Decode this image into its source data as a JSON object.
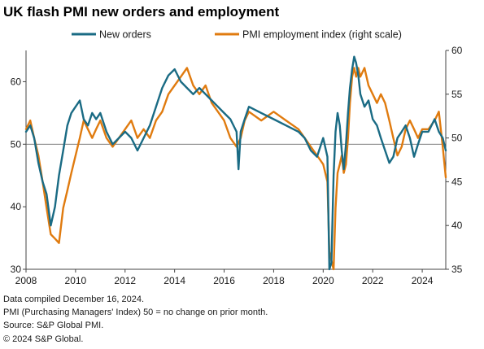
{
  "chart_data": {
    "type": "line",
    "title": "UK flash PMI new orders and employment",
    "x_ticks": [
      "2008",
      "2010",
      "2012",
      "2014",
      "2016",
      "2018",
      "2020",
      "2022",
      "2024"
    ],
    "xlim": [
      2008.0,
      2024.95
    ],
    "left_axis": {
      "ylim": [
        30,
        65
      ],
      "ticks": [
        "30",
        "40",
        "50",
        "60"
      ]
    },
    "right_axis": {
      "ylim": [
        35,
        60
      ],
      "ticks": [
        "35",
        "40",
        "45",
        "50",
        "55",
        "60"
      ]
    },
    "reference_line": 50,
    "legend_position": "top",
    "series": [
      {
        "name": "New orders",
        "axis": "left",
        "color": "#1a6b84",
        "x": [
          2008.0,
          2008.17,
          2008.33,
          2008.5,
          2008.67,
          2008.83,
          2009.0,
          2009.17,
          2009.33,
          2009.5,
          2009.67,
          2009.83,
          2010.0,
          2010.17,
          2010.33,
          2010.5,
          2010.67,
          2010.83,
          2011.0,
          2011.25,
          2011.5,
          2011.75,
          2012.0,
          2012.25,
          2012.5,
          2012.75,
          2013.0,
          2013.25,
          2013.5,
          2013.75,
          2014.0,
          2014.25,
          2014.5,
          2014.75,
          2015.0,
          2015.25,
          2015.5,
          2015.75,
          2016.0,
          2016.25,
          2016.5,
          2016.58,
          2016.67,
          2016.83,
          2017.0,
          2017.5,
          2018.0,
          2018.5,
          2019.0,
          2019.25,
          2019.5,
          2019.75,
          2020.0,
          2020.17,
          2020.25,
          2020.33,
          2020.42,
          2020.5,
          2020.58,
          2020.67,
          2020.75,
          2020.83,
          2020.92,
          2021.0,
          2021.08,
          2021.17,
          2021.25,
          2021.33,
          2021.42,
          2021.5,
          2021.67,
          2021.83,
          2022.0,
          2022.17,
          2022.33,
          2022.5,
          2022.67,
          2022.83,
          2023.0,
          2023.17,
          2023.33,
          2023.5,
          2023.67,
          2023.83,
          2024.0,
          2024.25,
          2024.5,
          2024.67,
          2024.83,
          2024.95
        ],
        "values": [
          52,
          53,
          51,
          47,
          44,
          42,
          37,
          40,
          45,
          49,
          53,
          55,
          56,
          57,
          54,
          53,
          55,
          54,
          55,
          52,
          50,
          51,
          52,
          51,
          49,
          51,
          53,
          56,
          59,
          61,
          62,
          60,
          59,
          58,
          59,
          58,
          57,
          56,
          55,
          54,
          52,
          46,
          52,
          54,
          56,
          55,
          54,
          53,
          52,
          51,
          49,
          48,
          51,
          48,
          30,
          31,
          45,
          52,
          55,
          53,
          49,
          46,
          50,
          55,
          59,
          62,
          64,
          63,
          61,
          58,
          56,
          57,
          54,
          53,
          51,
          49,
          47,
          48,
          51,
          52,
          53,
          51,
          48,
          50,
          52,
          52,
          54,
          52,
          51,
          49
        ]
      },
      {
        "name": "PMI employment index (right scale)",
        "axis": "right",
        "color": "#e07b0f",
        "x": [
          2008.0,
          2008.17,
          2008.33,
          2008.5,
          2008.67,
          2008.83,
          2009.0,
          2009.17,
          2009.33,
          2009.5,
          2009.67,
          2009.83,
          2010.0,
          2010.17,
          2010.33,
          2010.5,
          2010.67,
          2010.83,
          2011.0,
          2011.25,
          2011.5,
          2011.75,
          2012.0,
          2012.25,
          2012.5,
          2012.75,
          2013.0,
          2013.25,
          2013.5,
          2013.75,
          2014.0,
          2014.25,
          2014.5,
          2014.75,
          2015.0,
          2015.25,
          2015.5,
          2015.75,
          2016.0,
          2016.25,
          2016.5,
          2016.67,
          2016.83,
          2017.0,
          2017.5,
          2018.0,
          2018.5,
          2019.0,
          2019.25,
          2019.5,
          2019.75,
          2020.0,
          2020.17,
          2020.25,
          2020.33,
          2020.42,
          2020.5,
          2020.58,
          2020.67,
          2020.75,
          2020.83,
          2020.92,
          2021.0,
          2021.08,
          2021.17,
          2021.25,
          2021.33,
          2021.42,
          2021.5,
          2021.67,
          2021.83,
          2022.0,
          2022.17,
          2022.33,
          2022.5,
          2022.67,
          2022.83,
          2023.0,
          2023.17,
          2023.33,
          2023.5,
          2023.67,
          2023.83,
          2024.0,
          2024.25,
          2024.5,
          2024.67,
          2024.83,
          2024.95
        ],
        "values": [
          51,
          52,
          50,
          48,
          45,
          42,
          39,
          38.5,
          38,
          42,
          44,
          46,
          48,
          50,
          52,
          51,
          50,
          51,
          52,
          50,
          49,
          50,
          51,
          52,
          50,
          51,
          50,
          52,
          53,
          55,
          56,
          57,
          58,
          56,
          55,
          56,
          54,
          53,
          52,
          50,
          49,
          50,
          52,
          53,
          52,
          53,
          52,
          51,
          50,
          49,
          48,
          47,
          45,
          37,
          36,
          35,
          42,
          46,
          47,
          48,
          46,
          47,
          50,
          54,
          57,
          58,
          57,
          58,
          57,
          58,
          56,
          55,
          54,
          55,
          54,
          52,
          50,
          48,
          49,
          51,
          52,
          51,
          50,
          51,
          51,
          52,
          53,
          49,
          45.5
        ]
      }
    ]
  },
  "footnotes": [
    "Data compiled December 16, 2024.",
    "PMI (Purchasing Managers' Index) 50 = no change on prior month.",
    "Source: S&P Global PMI.",
    "© 2024 S&P Global."
  ]
}
